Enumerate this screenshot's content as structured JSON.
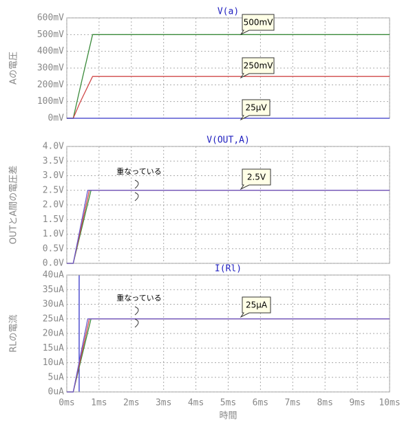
{
  "chart_data": [
    {
      "type": "line",
      "title": "V(a)",
      "y_label": "Aの電圧",
      "x": [
        0,
        0.2,
        0.4,
        0.8,
        10
      ],
      "xlim": [
        0,
        10
      ],
      "series": [
        {
          "name": "500mV",
          "color": "#3a8a3a",
          "values": [
            0,
            0,
            170,
            500,
            500
          ]
        },
        {
          "name": "250mV",
          "color": "#d04848",
          "values": [
            0,
            0,
            90,
            250,
            250
          ]
        },
        {
          "name": "25µV",
          "color": "#3434c8",
          "values": [
            0,
            0,
            0,
            0,
            0
          ]
        }
      ],
      "ylim": [
        0,
        600
      ],
      "yticks": [
        {
          "value": 0,
          "label": "0mV"
        },
        {
          "value": 100,
          "label": "100mV"
        },
        {
          "value": 200,
          "label": "200mV"
        },
        {
          "value": 300,
          "label": "300mV"
        },
        {
          "value": 400,
          "label": "400mV"
        },
        {
          "value": 500,
          "label": "500mV"
        },
        {
          "value": 600,
          "label": "600mV"
        }
      ],
      "callouts": [
        "500mV",
        "250mV",
        "25µV"
      ],
      "notes": [],
      "grid": true
    },
    {
      "type": "line",
      "title": "V(OUT,A)",
      "y_label": "OUTとA間の電圧差",
      "x": [
        0,
        0.2,
        0.65,
        0.7,
        0.75,
        10
      ],
      "xlim": [
        0,
        10
      ],
      "series": [
        {
          "name": "green",
          "color": "#3a8a3a",
          "values": [
            0,
            0,
            2.05,
            2.27,
            2.5,
            2.5
          ]
        },
        {
          "name": "red",
          "color": "#d04848",
          "values": [
            0,
            0,
            2.25,
            2.5,
            2.5,
            2.5
          ]
        },
        {
          "name": "blue",
          "color": "#6a5acd",
          "values": [
            0,
            0,
            2.5,
            2.5,
            2.5,
            2.5
          ]
        }
      ],
      "ylim": [
        0,
        4
      ],
      "yticks": [
        {
          "value": 0,
          "label": "0.0V"
        },
        {
          "value": 0.5,
          "label": "0.5V"
        },
        {
          "value": 1,
          "label": "1.0V"
        },
        {
          "value": 1.5,
          "label": "1.5V"
        },
        {
          "value": 2,
          "label": "2.0V"
        },
        {
          "value": 2.5,
          "label": "2.5V"
        },
        {
          "value": 3,
          "label": "3.0V"
        },
        {
          "value": 3.5,
          "label": "3.5V"
        },
        {
          "value": 4,
          "label": "4.0V"
        }
      ],
      "callouts": [
        "2.5V"
      ],
      "notes": [
        "重なっている"
      ],
      "grid": true
    },
    {
      "type": "line",
      "title": "I(Rl)",
      "y_label": "RLの電流",
      "x_label": "時間",
      "x": [
        0,
        0.2,
        0.65,
        0.7,
        0.75,
        10
      ],
      "xlim": [
        0,
        10
      ],
      "xticks": [
        {
          "value": 0,
          "label": "0ms"
        },
        {
          "value": 1,
          "label": "1ms"
        },
        {
          "value": 2,
          "label": "2ms"
        },
        {
          "value": 3,
          "label": "3ms"
        },
        {
          "value": 4,
          "label": "4ms"
        },
        {
          "value": 5,
          "label": "5ms"
        },
        {
          "value": 6,
          "label": "6ms"
        },
        {
          "value": 7,
          "label": "7ms"
        },
        {
          "value": 8,
          "label": "8ms"
        },
        {
          "value": 9,
          "label": "9ms"
        },
        {
          "value": 10,
          "label": "10ms"
        }
      ],
      "series": [
        {
          "name": "green",
          "color": "#3a8a3a",
          "values": [
            0,
            0,
            20.5,
            22.7,
            25,
            25
          ]
        },
        {
          "name": "red",
          "color": "#d04848",
          "values": [
            0,
            0,
            22.5,
            25,
            25,
            25
          ]
        },
        {
          "name": "blue",
          "color": "#6a5acd",
          "values": [
            0,
            0,
            25,
            25,
            25,
            25
          ]
        }
      ],
      "ylim": [
        0,
        40
      ],
      "yticks": [
        {
          "value": 0,
          "label": "0uA"
        },
        {
          "value": 5,
          "label": "5uA"
        },
        {
          "value": 10,
          "label": "10uA"
        },
        {
          "value": 15,
          "label": "15uA"
        },
        {
          "value": 20,
          "label": "20uA"
        },
        {
          "value": 25,
          "label": "25uA"
        },
        {
          "value": 30,
          "label": "30uA"
        },
        {
          "value": 35,
          "label": "35uA"
        },
        {
          "value": 40,
          "label": "40uA"
        }
      ],
      "callouts": [
        "25µA"
      ],
      "notes": [
        "重なっている"
      ],
      "grid": true
    }
  ]
}
